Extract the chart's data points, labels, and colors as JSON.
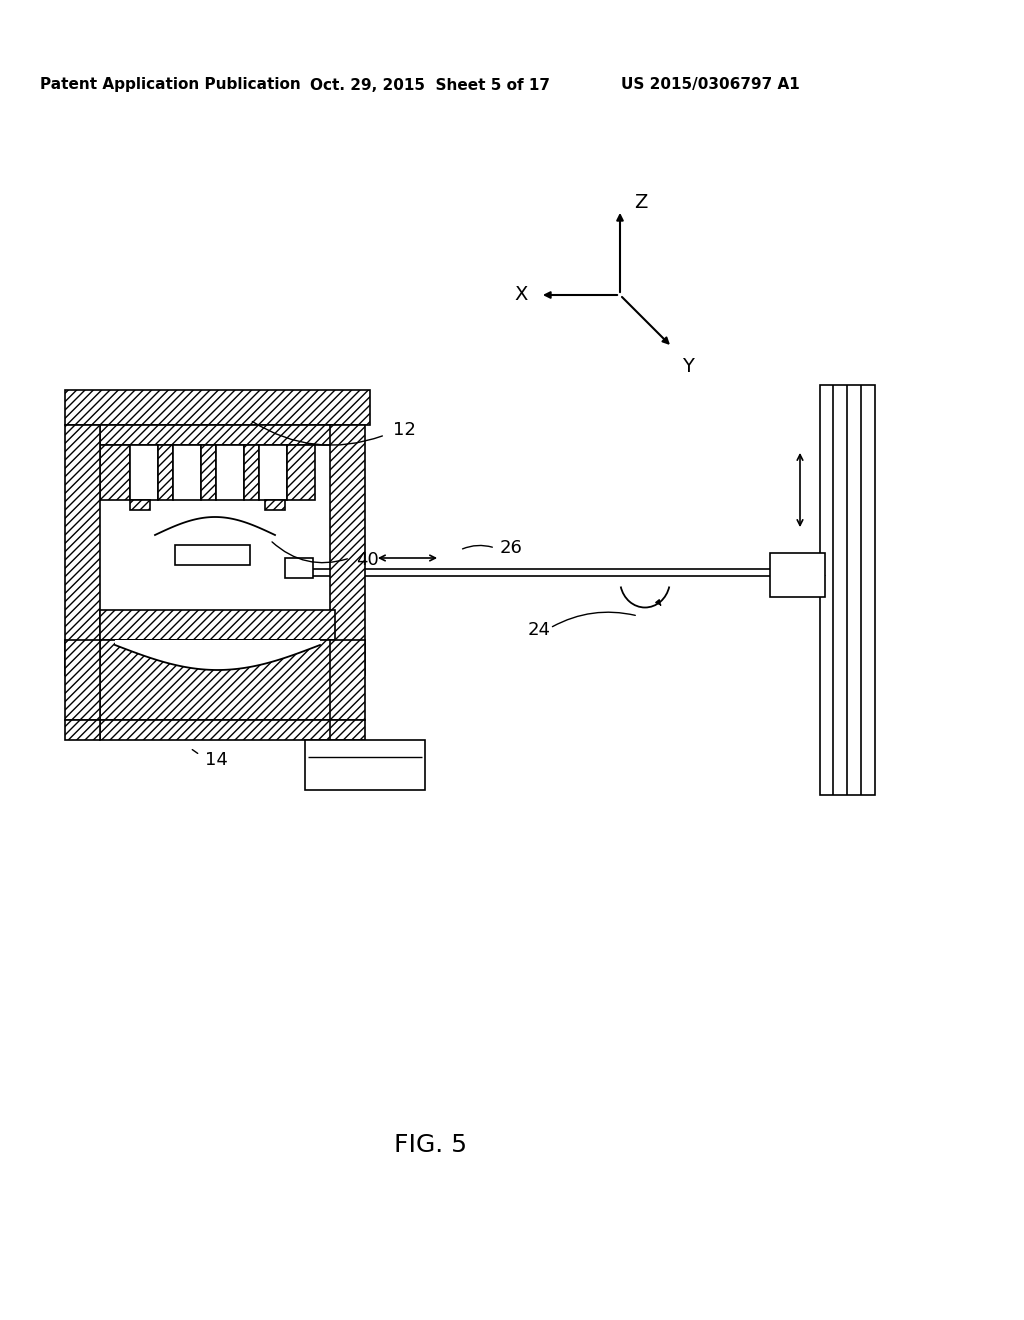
{
  "bg_color": "#ffffff",
  "header_text_left": "Patent Application Publication",
  "header_text_mid": "Oct. 29, 2015  Sheet 5 of 17",
  "header_text_right": "US 2015/0306797 A1",
  "figure_label": "FIG. 5",
  "lw_main": 1.2,
  "lw_hatch": 1.2,
  "hatch_density": "////",
  "fig_label_fontsize": 18,
  "header_fontsize": 11,
  "label_fontsize": 13,
  "axis_label_fontsize": 14
}
